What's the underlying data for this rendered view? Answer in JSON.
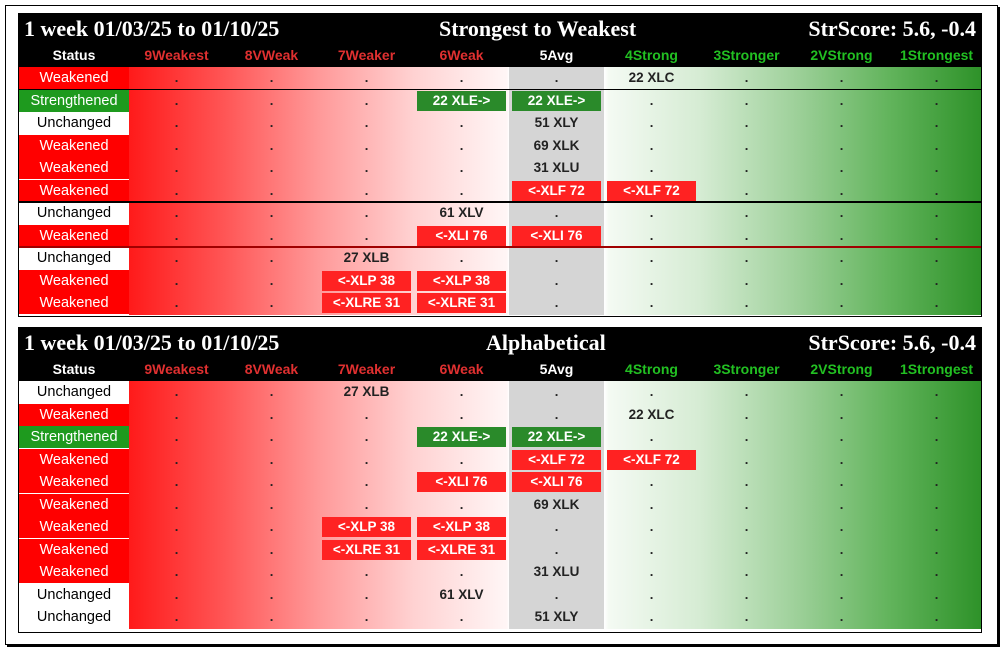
{
  "columns": [
    {
      "label": "9Weakest",
      "color": "#e03030"
    },
    {
      "label": "8VWeak",
      "color": "#e03030"
    },
    {
      "label": "7Weaker",
      "color": "#e03030"
    },
    {
      "label": "6Weak",
      "color": "#e03030"
    },
    {
      "label": "5Avg",
      "color": "#ffffff"
    },
    {
      "label": "4Strong",
      "color": "#22c022"
    },
    {
      "label": "3Stronger",
      "color": "#22c022"
    },
    {
      "label": "2VStrong",
      "color": "#22c022"
    },
    {
      "label": "1Strongest",
      "color": "#22c022"
    }
  ],
  "status_header": "Status",
  "dot": ".",
  "panels": [
    {
      "title_left": "1 week 01/03/25 to 01/10/25",
      "title_mid": "Strongest to Weakest",
      "title_right": "StrScore: 5.6, -0.4",
      "rows": [
        {
          "status": "Weakened",
          "tags": [
            {
              "col": 5,
              "text": "22 XLC",
              "style": "plain"
            }
          ]
        },
        {
          "status": "Strengthened",
          "tags": [
            {
              "col": 3,
              "text": "22 XLE->",
              "style": "green"
            },
            {
              "col": 4,
              "text": "22 XLE->",
              "style": "green"
            }
          ]
        },
        {
          "status": "Unchanged",
          "tags": [
            {
              "col": 4,
              "text": "51 XLY",
              "style": "plain"
            }
          ]
        },
        {
          "status": "Weakened",
          "tags": [
            {
              "col": 4,
              "text": "69 XLK",
              "style": "plain"
            }
          ]
        },
        {
          "status": "Weakened",
          "tags": [
            {
              "col": 4,
              "text": "31 XLU",
              "style": "plain"
            }
          ]
        },
        {
          "status": "Weakened",
          "tags": [
            {
              "col": 4,
              "text": "<-XLF 72",
              "style": "red"
            },
            {
              "col": 5,
              "text": "<-XLF 72",
              "style": "red"
            }
          ]
        },
        {
          "status": "Unchanged",
          "tags": [
            {
              "col": 3,
              "text": "61 XLV",
              "style": "plain"
            }
          ]
        },
        {
          "status": "Weakened",
          "tags": [
            {
              "col": 3,
              "text": "<-XLI 76",
              "style": "red"
            },
            {
              "col": 4,
              "text": "<-XLI 76",
              "style": "red"
            }
          ]
        },
        {
          "status": "Unchanged",
          "tags": [
            {
              "col": 2,
              "text": "27 XLB",
              "style": "plain"
            }
          ]
        },
        {
          "status": "Weakened",
          "tags": [
            {
              "col": 2,
              "text": "<-XLP 38",
              "style": "red"
            },
            {
              "col": 3,
              "text": "<-XLP 38",
              "style": "red"
            }
          ]
        },
        {
          "status": "Weakened",
          "tags": [
            {
              "col": 2,
              "text": "<-XLRE 31",
              "style": "red"
            },
            {
              "col": 3,
              "text": "<-XLRE 31",
              "style": "red"
            }
          ]
        }
      ],
      "separators": [
        {
          "after": 0,
          "color": "#000000"
        },
        {
          "after": 5,
          "color": "#000000"
        },
        {
          "after": 7,
          "color": "#a00000"
        }
      ]
    },
    {
      "title_left": "1 week 01/03/25 to 01/10/25",
      "title_mid": "Alphabetical",
      "title_right": "StrScore: 5.6, -0.4",
      "rows": [
        {
          "status": "Unchanged",
          "tags": [
            {
              "col": 2,
              "text": "27 XLB",
              "style": "plain"
            }
          ]
        },
        {
          "status": "Weakened",
          "tags": [
            {
              "col": 5,
              "text": "22 XLC",
              "style": "plain"
            }
          ]
        },
        {
          "status": "Strengthened",
          "tags": [
            {
              "col": 3,
              "text": "22 XLE->",
              "style": "green"
            },
            {
              "col": 4,
              "text": "22 XLE->",
              "style": "green"
            }
          ]
        },
        {
          "status": "Weakened",
          "tags": [
            {
              "col": 4,
              "text": "<-XLF 72",
              "style": "red"
            },
            {
              "col": 5,
              "text": "<-XLF 72",
              "style": "red"
            }
          ]
        },
        {
          "status": "Weakened",
          "tags": [
            {
              "col": 3,
              "text": "<-XLI 76",
              "style": "red"
            },
            {
              "col": 4,
              "text": "<-XLI 76",
              "style": "red"
            }
          ]
        },
        {
          "status": "Weakened",
          "tags": [
            {
              "col": 4,
              "text": "69 XLK",
              "style": "plain"
            }
          ]
        },
        {
          "status": "Weakened",
          "tags": [
            {
              "col": 2,
              "text": "<-XLP 38",
              "style": "red"
            },
            {
              "col": 3,
              "text": "<-XLP 38",
              "style": "red"
            }
          ]
        },
        {
          "status": "Weakened",
          "tags": [
            {
              "col": 2,
              "text": "<-XLRE 31",
              "style": "red"
            },
            {
              "col": 3,
              "text": "<-XLRE 31",
              "style": "red"
            }
          ]
        },
        {
          "status": "Weakened",
          "tags": [
            {
              "col": 4,
              "text": "31 XLU",
              "style": "plain"
            }
          ]
        },
        {
          "status": "Unchanged",
          "tags": [
            {
              "col": 3,
              "text": "61 XLV",
              "style": "plain"
            }
          ]
        },
        {
          "status": "Unchanged",
          "tags": [
            {
              "col": 4,
              "text": "51 XLY",
              "style": "plain"
            }
          ]
        }
      ],
      "separators": []
    }
  ]
}
